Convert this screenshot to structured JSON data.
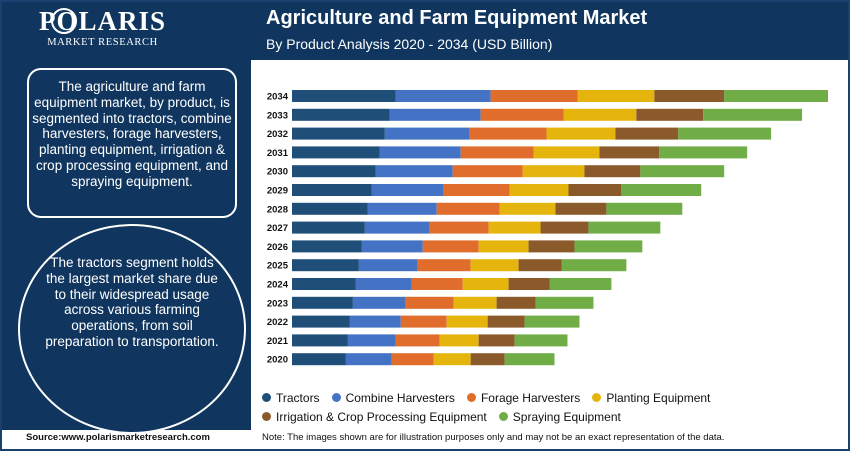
{
  "brand": {
    "name": "POLARIS",
    "tagline": "MARKET RESEARCH"
  },
  "header": {
    "title": "Agriculture and Farm Equipment Market",
    "subtitle": "By Product Analysis 2020 - 2034 (USD Billion)"
  },
  "panel": {
    "summary": "The agriculture and farm equipment market, by product, is segmented into tractors, combine harvesters, forage harvesters, planting equipment, irrigation & crop processing equipment, and spraying equipment.",
    "highlight": "The tractors segment holds the largest market share due to their widespread usage across various farming operations, from soil preparation to transportation."
  },
  "footer": {
    "source": "Source:www.polarismarketresearch.com",
    "note": "Note: The images shown are for illustration purposes only and may not be an exact representation of the data."
  },
  "chart_data": {
    "type": "bar",
    "orientation": "horizontal",
    "stacked": true,
    "title": "",
    "xlabel": "",
    "ylabel": "",
    "grid": false,
    "legend_position": "bottom",
    "categories": [
      "2034",
      "2033",
      "2032",
      "2031",
      "2030",
      "2029",
      "2028",
      "2027",
      "2026",
      "2025",
      "2024",
      "2023",
      "2022",
      "2021",
      "2020"
    ],
    "series": [
      {
        "name": "Tractors",
        "color": "#1f4e79",
        "values": [
          104,
          98,
          93,
          88,
          84,
          80,
          76,
          73,
          70,
          67,
          64,
          61,
          58,
          56,
          54
        ]
      },
      {
        "name": "Combine Harvesters",
        "color": "#4472c4",
        "values": [
          95,
          91,
          85,
          81,
          77,
          72,
          69,
          65,
          61,
          59,
          56,
          53,
          51,
          48,
          46
        ]
      },
      {
        "name": "Forage Harvesters",
        "color": "#e06d2b",
        "values": [
          87,
          83,
          77,
          73,
          70,
          66,
          63,
          59,
          56,
          53,
          51,
          48,
          46,
          44,
          42
        ]
      },
      {
        "name": "Planting Equipment",
        "color": "#e5b50e",
        "values": [
          77,
          73,
          69,
          66,
          62,
          59,
          56,
          52,
          50,
          48,
          46,
          43,
          41,
          39,
          37
        ]
      },
      {
        "name": "Irrigation & Crop Processing Equipment",
        "color": "#8b5a2b",
        "values": [
          70,
          67,
          63,
          60,
          56,
          53,
          51,
          48,
          46,
          43,
          41,
          39,
          37,
          36,
          34
        ]
      },
      {
        "name": "Spraying Equipment",
        "color": "#70ad47",
        "values": [
          104,
          99,
          93,
          88,
          84,
          80,
          76,
          72,
          68,
          65,
          62,
          58,
          55,
          53,
          50
        ]
      }
    ]
  }
}
